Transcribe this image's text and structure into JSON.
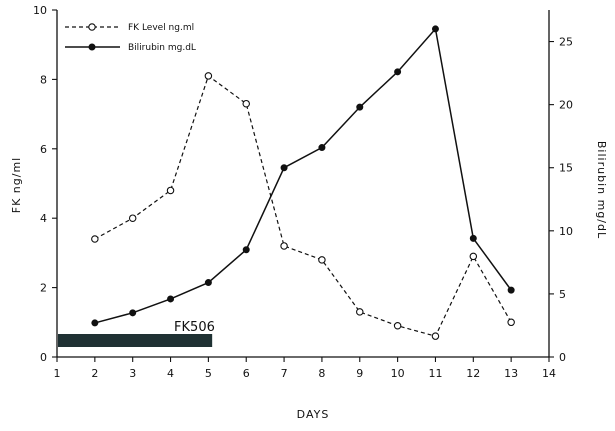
{
  "chart_data": {
    "type": "line",
    "xlabel": "DAYS",
    "ylabel_left": "FK  ng/ml",
    "ylabel_right": "Bilirubin  mg/dL",
    "xlim": [
      1,
      14
    ],
    "ylim_left": [
      0,
      10
    ],
    "ylim_right": [
      0,
      27.5
    ],
    "x_ticks": [
      "1",
      "2",
      "3",
      "4",
      "5",
      "6",
      "7",
      "8",
      "9",
      "10",
      "11",
      "12",
      "13",
      "14"
    ],
    "y_ticks_left": [
      "0",
      "2",
      "4",
      "6",
      "8",
      "10"
    ],
    "y_ticks_right": [
      "0",
      "5",
      "10",
      "15",
      "20",
      "25"
    ],
    "legend_placement": "top-left",
    "series": [
      {
        "name": "FK Level ng.ml",
        "axis": "left",
        "style": "dashed-open-circle",
        "x": [
          2,
          3,
          4,
          5,
          6,
          7,
          8,
          9,
          10,
          11,
          12,
          13
        ],
        "values": [
          3.4,
          4.0,
          4.8,
          8.1,
          7.3,
          3.2,
          2.8,
          1.3,
          0.9,
          0.6,
          2.9,
          1.0
        ]
      },
      {
        "name": "Bilirubin mg.dL",
        "axis": "right",
        "style": "solid-filled-circle",
        "x": [
          2,
          3,
          4,
          5,
          6,
          7,
          8,
          9,
          10,
          11,
          12,
          13
        ],
        "values": [
          2.7,
          3.5,
          4.6,
          5.9,
          8.5,
          15.0,
          16.6,
          19.8,
          22.6,
          26.0,
          9.4,
          5.3
        ]
      }
    ],
    "annotation_bar": {
      "label": "FK506",
      "x_start": 1,
      "x_end": 5.1,
      "color": "#1f3133"
    }
  }
}
